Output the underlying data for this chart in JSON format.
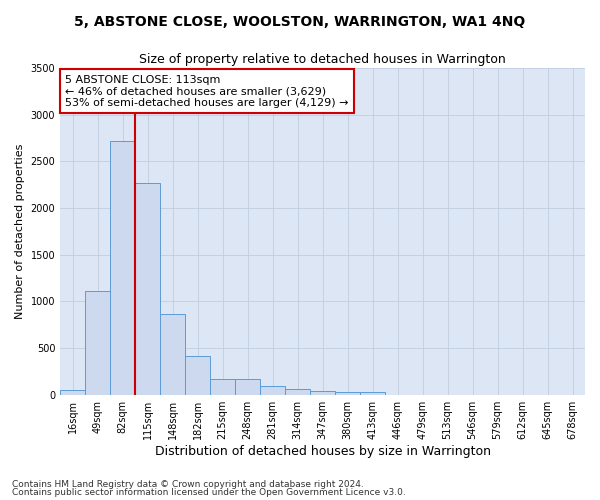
{
  "title": "5, ABSTONE CLOSE, WOOLSTON, WARRINGTON, WA1 4NQ",
  "subtitle": "Size of property relative to detached houses in Warrington",
  "xlabel": "Distribution of detached houses by size in Warrington",
  "ylabel": "Number of detached properties",
  "footer_line1": "Contains HM Land Registry data © Crown copyright and database right 2024.",
  "footer_line2": "Contains public sector information licensed under the Open Government Licence v3.0.",
  "bar_labels": [
    "16sqm",
    "49sqm",
    "82sqm",
    "115sqm",
    "148sqm",
    "182sqm",
    "215sqm",
    "248sqm",
    "281sqm",
    "314sqm",
    "347sqm",
    "380sqm",
    "413sqm",
    "446sqm",
    "479sqm",
    "513sqm",
    "546sqm",
    "579sqm",
    "612sqm",
    "645sqm",
    "678sqm"
  ],
  "bar_values": [
    55,
    1110,
    2720,
    2270,
    860,
    420,
    170,
    165,
    90,
    60,
    45,
    25,
    25,
    0,
    0,
    0,
    0,
    0,
    0,
    0,
    0
  ],
  "bar_color": "#ccd9ee",
  "bar_edgecolor": "#5b9bd5",
  "vline_pos": 2.5,
  "vline_color": "#cc0000",
  "annotation_line1": "5 ABSTONE CLOSE: 113sqm",
  "annotation_line2": "← 46% of detached houses are smaller (3,629)",
  "annotation_line3": "53% of semi-detached houses are larger (4,129) →",
  "annotation_box_edgecolor": "#cc0000",
  "annotation_box_facecolor": "white",
  "ylim": [
    0,
    3500
  ],
  "yticks": [
    0,
    500,
    1000,
    1500,
    2000,
    2500,
    3000,
    3500
  ],
  "grid_color": "#c0cde0",
  "axes_bg_color": "#dce6f5",
  "title_fontsize": 10,
  "subtitle_fontsize": 9,
  "ylabel_fontsize": 8,
  "xlabel_fontsize": 9,
  "tick_fontsize": 7,
  "ann_fontsize": 8
}
